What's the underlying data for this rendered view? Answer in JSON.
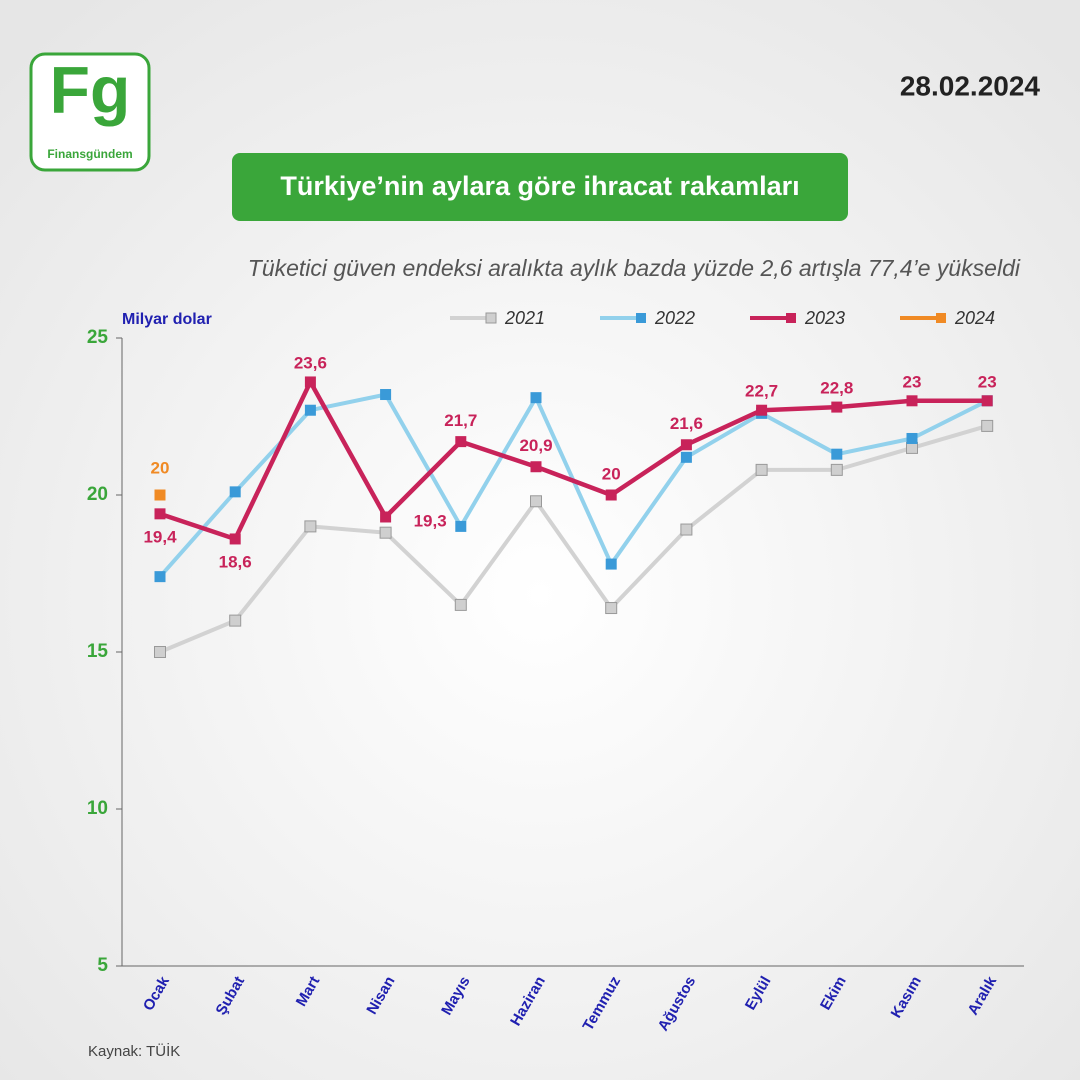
{
  "brand": {
    "logo": "Fg",
    "name": "Finansgündem"
  },
  "date": "28.02.2024",
  "source": "Kaynak: TÜİK",
  "chart_data": {
    "type": "line",
    "title": "Türkiye’nin aylara göre ihracat rakamları",
    "subtitle": "Tüketici güven endeksi aralıkta aylık bazda yüzde 2,6 artışla 77,4’e yükseldi",
    "y_label": "Milyar dolar",
    "categories": [
      "Ocak",
      "Şubat",
      "Mart",
      "Nisan",
      "Mayıs",
      "Haziran",
      "Temmuz",
      "Ağustos",
      "Eylül",
      "Ekim",
      "Kasım",
      "Aralık"
    ],
    "ylim": [
      5,
      25
    ],
    "yticks": [
      5,
      10,
      15,
      20,
      25
    ],
    "legend": "top",
    "series": [
      {
        "name": "2021",
        "color": "#d2d2d2",
        "marker_color": "#cfcfcf",
        "values": [
          15.0,
          16.0,
          19.0,
          18.8,
          16.5,
          19.8,
          16.4,
          18.9,
          20.8,
          20.8,
          21.5,
          22.2
        ]
      },
      {
        "name": "2022",
        "color": "#92d1ec",
        "marker_color": "#3a9ad8",
        "values": [
          17.4,
          20.1,
          22.7,
          23.2,
          19.0,
          23.1,
          17.8,
          21.2,
          22.6,
          21.3,
          21.8,
          23.0
        ]
      },
      {
        "name": "2023",
        "color": "#c8235a",
        "marker_color": "#c8235a",
        "values": [
          19.4,
          18.6,
          23.6,
          19.3,
          21.7,
          20.9,
          20,
          21.6,
          22.7,
          22.8,
          23,
          23
        ],
        "value_labels": [
          "19,4",
          "18,6",
          "23,6",
          "19,3",
          "21,7",
          "20,9",
          "20",
          "21,6",
          "22,7",
          "22,8",
          "23",
          "23"
        ]
      },
      {
        "name": "2024",
        "color": "#f08a24",
        "marker_color": "#f08a24",
        "values": [
          20,
          null,
          null,
          null,
          null,
          null,
          null,
          null,
          null,
          null,
          null,
          null
        ]
      }
    ]
  }
}
